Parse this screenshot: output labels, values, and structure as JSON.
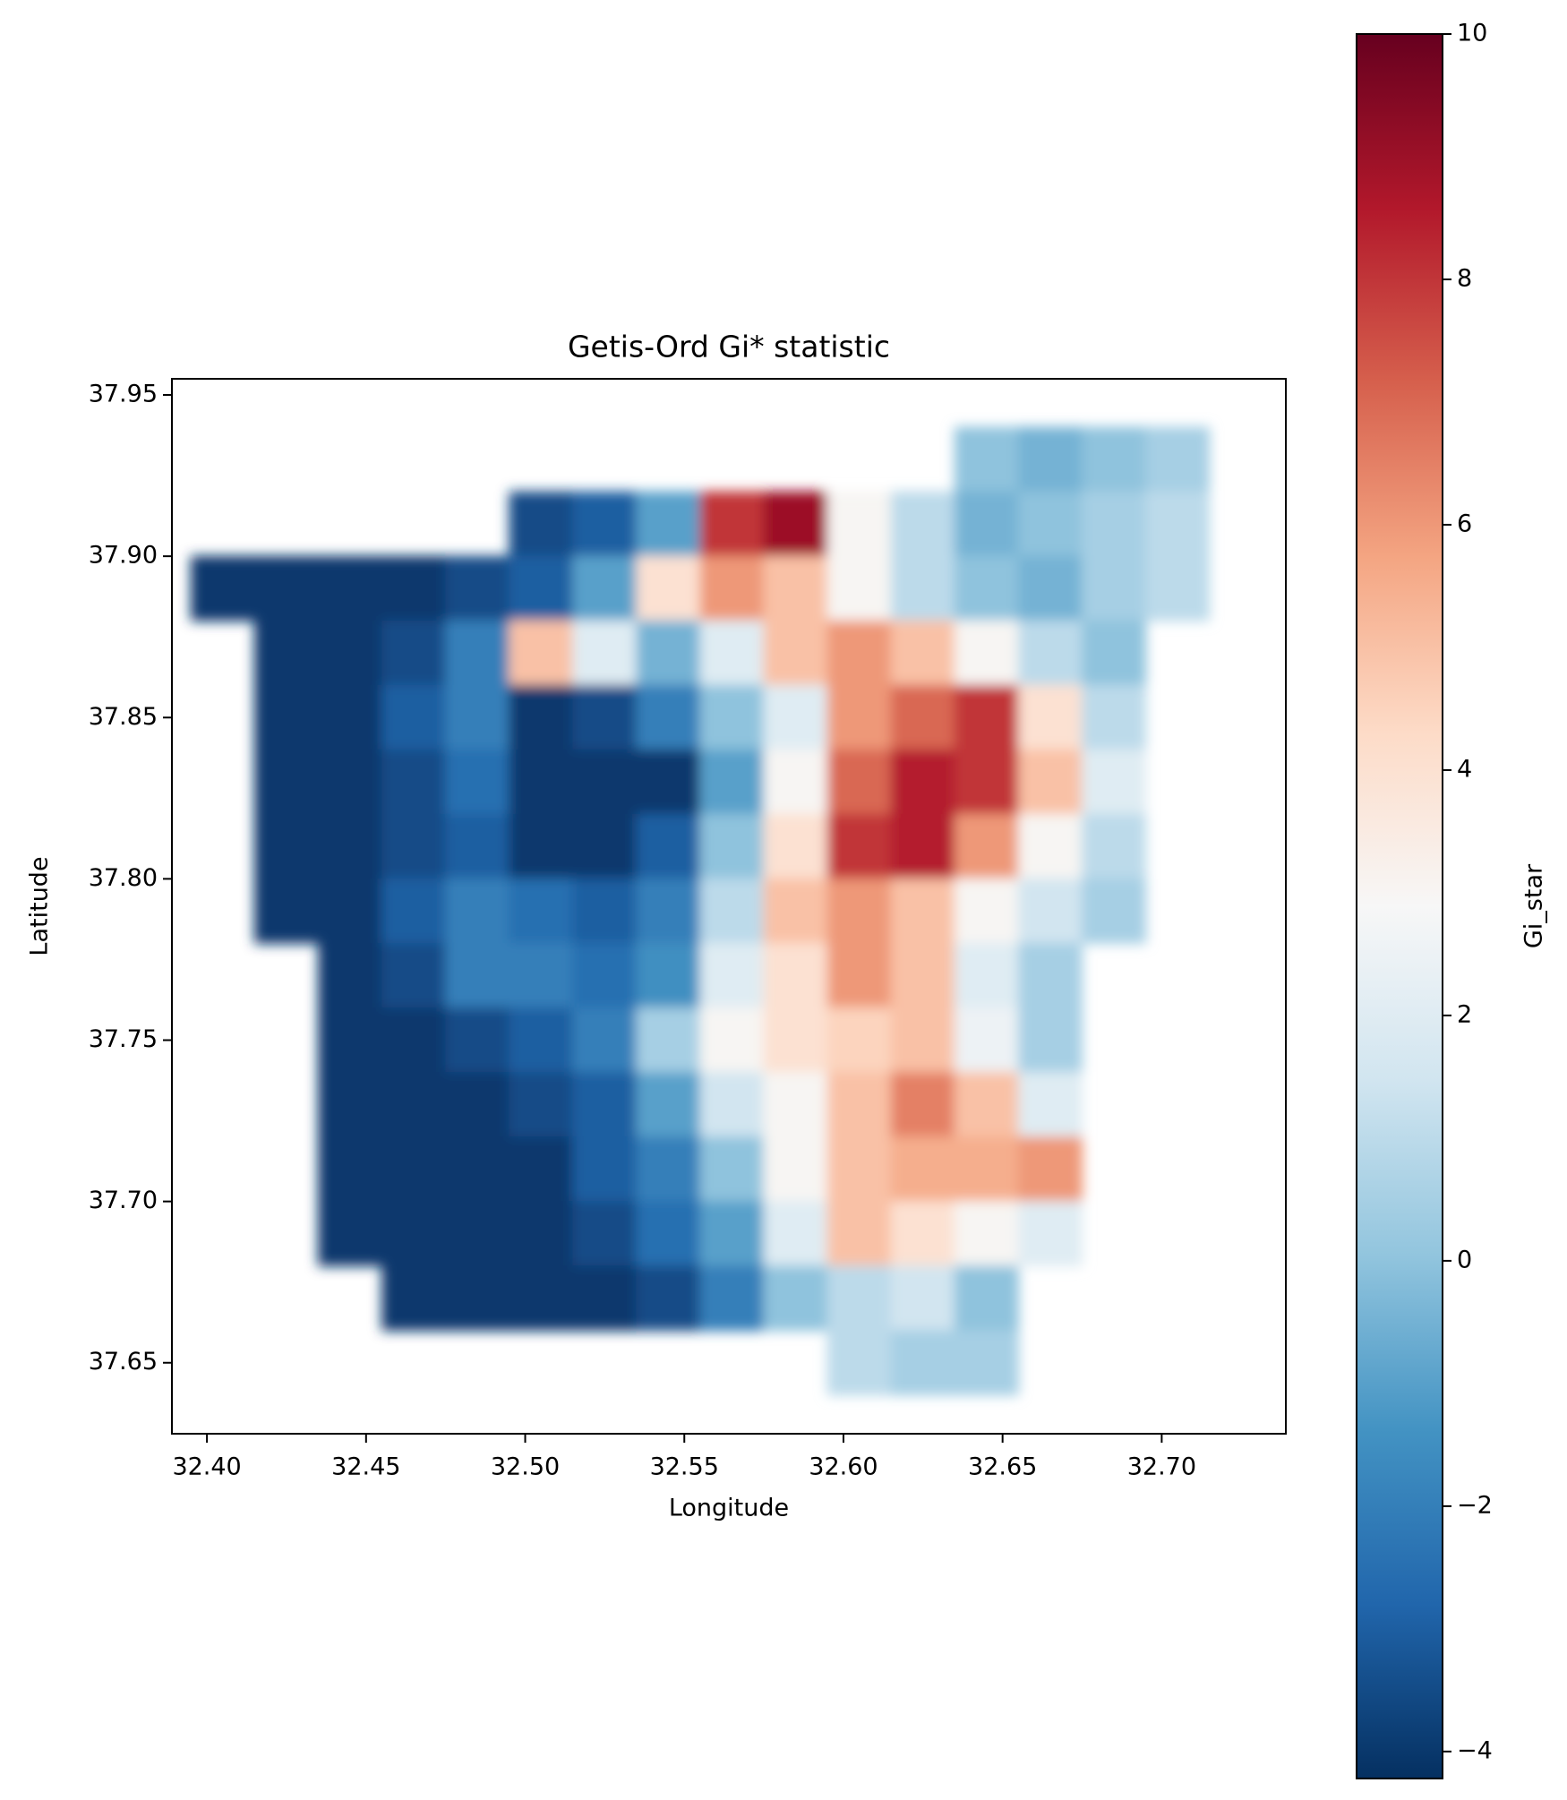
{
  "chart_data": {
    "type": "heatmap",
    "title": "Getis-Ord Gi* statistic",
    "x_label": "Longitude",
    "y_label": "Latitude",
    "colorbar_label": "Gi_star",
    "x": [
      32.405,
      32.425,
      32.445,
      32.465,
      32.485,
      32.505,
      32.525,
      32.545,
      32.565,
      32.585,
      32.605,
      32.625,
      32.645,
      32.665,
      32.685,
      32.705
    ],
    "y": [
      37.93,
      37.91,
      37.89,
      37.87,
      37.85,
      37.83,
      37.81,
      37.79,
      37.77,
      37.75,
      37.73,
      37.71,
      37.69,
      37.67,
      37.65
    ],
    "values": [
      [
        null,
        null,
        null,
        null,
        null,
        null,
        null,
        null,
        null,
        null,
        null,
        null,
        0,
        -0.5,
        0,
        0.5
      ],
      [
        null,
        null,
        null,
        null,
        null,
        -3.5,
        -3,
        -1,
        8,
        9,
        3,
        1,
        -0.5,
        0,
        0.5,
        1
      ],
      [
        -4,
        -4,
        -4,
        -4,
        -3.5,
        -3,
        -1,
        4,
        6,
        5,
        3,
        1,
        0,
        -0.5,
        0.5,
        1
      ],
      [
        null,
        -4,
        -4,
        -3.5,
        -2,
        5,
        2,
        -0.5,
        2,
        5,
        6,
        5,
        3,
        1,
        0,
        null
      ],
      [
        null,
        -4,
        -4,
        -3,
        -2,
        -4,
        -3.5,
        -2,
        0,
        2,
        6,
        7,
        8,
        4,
        1,
        null
      ],
      [
        null,
        -4,
        -4,
        -3.5,
        -2.5,
        -4,
        -4,
        -4,
        -1,
        3,
        7,
        8.5,
        8,
        5,
        2,
        null
      ],
      [
        null,
        -4,
        -4,
        -3.5,
        -3,
        -4,
        -4,
        -3,
        0,
        4,
        8,
        8.5,
        6,
        3,
        1,
        null
      ],
      [
        null,
        -4,
        -4,
        -3,
        -2,
        -2.5,
        -3,
        -2,
        1,
        5,
        6,
        5,
        3,
        1.5,
        0.5,
        null
      ],
      [
        null,
        null,
        -4,
        -3.5,
        -2,
        -2,
        -2.5,
        -1.5,
        2,
        4,
        6,
        5,
        2,
        0.5,
        null,
        null
      ],
      [
        null,
        null,
        -4,
        -4,
        -3.5,
        -3,
        -2,
        0.5,
        3,
        4,
        4.5,
        5,
        2.5,
        0.5,
        null,
        null
      ],
      [
        null,
        null,
        -4,
        -4,
        -4,
        -3.5,
        -3,
        -1,
        1.5,
        3,
        5,
        6.5,
        5,
        2,
        null,
        null
      ],
      [
        null,
        null,
        -4,
        -4,
        -4,
        -4,
        -3,
        -2,
        0,
        3,
        5,
        5.5,
        5.5,
        6,
        null,
        null
      ],
      [
        null,
        null,
        -4,
        -4,
        -4,
        -4,
        -3.5,
        -2.5,
        -1,
        2,
        5,
        4,
        3,
        2,
        null,
        null
      ],
      [
        null,
        null,
        null,
        -4,
        -4,
        -4,
        -4,
        -3.5,
        -2,
        0,
        1,
        1.5,
        0,
        null,
        null,
        null
      ],
      [
        null,
        null,
        null,
        null,
        null,
        null,
        null,
        null,
        null,
        null,
        1,
        0.5,
        0.5,
        null,
        null,
        null
      ]
    ],
    "xlim": [
      32.389,
      32.739
    ],
    "ylim": [
      37.628,
      37.955
    ],
    "xticks": [
      {
        "value": 32.4,
        "label": "32.40"
      },
      32.45,
      {
        "value": 32.5,
        "label": "32.50"
      },
      32.55,
      {
        "value": 32.6,
        "label": "32.60"
      },
      32.65,
      {
        "value": 32.7,
        "label": "32.70"
      }
    ],
    "yticks": [
      37.65,
      {
        "value": 37.7,
        "label": "37.70"
      },
      37.75,
      {
        "value": 37.8,
        "label": "37.80"
      },
      37.85,
      {
        "value": 37.9,
        "label": "37.90"
      },
      37.95
    ],
    "clim": [
      -4.22,
      10
    ],
    "cticks": [
      {
        "value": -4,
        "label": "−4"
      },
      {
        "value": -2,
        "label": "−2"
      },
      0,
      2,
      4,
      6,
      8,
      10
    ],
    "colormap": [
      "#053061",
      "#2166ac",
      "#4393c3",
      "#92c5de",
      "#d1e5f0",
      "#f7f7f7",
      "#fddbc7",
      "#f4a582",
      "#d6604d",
      "#b2182b",
      "#67001f"
    ]
  }
}
